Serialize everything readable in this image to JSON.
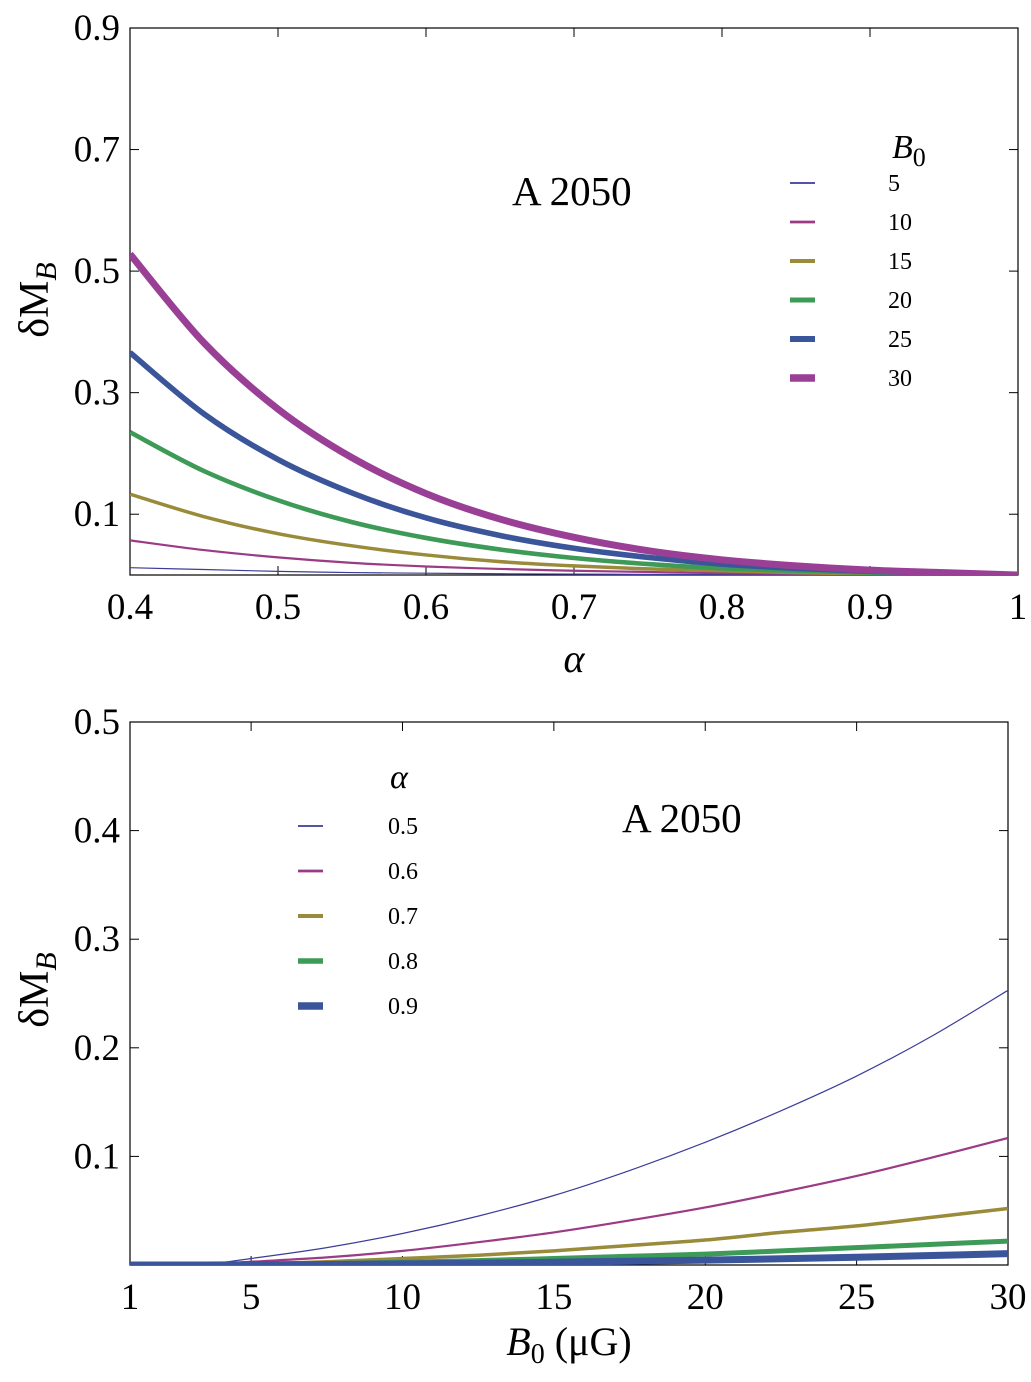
{
  "chart_data": [
    {
      "type": "line",
      "annotation": "A 2050",
      "xlabel": "α",
      "ylabel": "δM",
      "ylabel_sub": "B",
      "xlim": [
        0.4,
        1.0
      ],
      "ylim": [
        0.0,
        0.9
      ],
      "x_ticks": [
        0.4,
        0.5,
        0.6,
        0.7,
        0.8,
        0.9,
        1.0
      ],
      "x_tick_labels": [
        "0.4",
        "0.5",
        "0.6",
        "0.7",
        "0.8",
        "0.9",
        "1"
      ],
      "y_ticks": [
        0.1,
        0.3,
        0.5,
        0.7,
        0.9
      ],
      "y_tick_labels": [
        "0.1",
        "0.3",
        "0.5",
        "0.7",
        "0.9"
      ],
      "legend_title": "B",
      "legend_title_sub": "0",
      "legend_position": "top-right",
      "grid": false,
      "x": [
        0.4,
        0.45,
        0.5,
        0.55,
        0.6,
        0.65,
        0.7,
        0.75,
        0.8,
        0.85,
        0.9,
        0.95,
        1.0
      ],
      "series": [
        {
          "name": "5",
          "color": "#3c3c99",
          "values": [
            0.012,
            0.009,
            0.006,
            0.004,
            0.003,
            0.002,
            0.0015,
            0.001,
            0.0007,
            0.0004,
            0.0002,
            0.0001,
            0.0
          ]
        },
        {
          "name": "10",
          "color": "#9b3a85",
          "values": [
            0.057,
            0.041,
            0.029,
            0.02,
            0.014,
            0.01,
            0.007,
            0.005,
            0.003,
            0.002,
            0.001,
            0.0005,
            0.0
          ]
        },
        {
          "name": "15",
          "color": "#9a8b3b",
          "values": [
            0.133,
            0.096,
            0.068,
            0.048,
            0.033,
            0.022,
            0.015,
            0.01,
            0.007,
            0.004,
            0.002,
            0.001,
            0.0
          ]
        },
        {
          "name": "20",
          "color": "#3d9a57",
          "values": [
            0.235,
            0.171,
            0.123,
            0.087,
            0.061,
            0.042,
            0.028,
            0.018,
            0.011,
            0.007,
            0.004,
            0.002,
            0.0
          ]
        },
        {
          "name": "25",
          "color": "#3a5599",
          "values": [
            0.366,
            0.265,
            0.19,
            0.135,
            0.094,
            0.065,
            0.044,
            0.029,
            0.018,
            0.011,
            0.006,
            0.003,
            0.0
          ]
        },
        {
          "name": "30",
          "color": "#9a3f96",
          "values": [
            0.528,
            0.382,
            0.273,
            0.193,
            0.134,
            0.092,
            0.062,
            0.04,
            0.025,
            0.015,
            0.008,
            0.004,
            0.0
          ]
        }
      ]
    },
    {
      "type": "line",
      "annotation": "A 2050",
      "xlabel": "B",
      "xlabel_sub": "0",
      "xlabel_unit": " (μG)",
      "ylabel": "δM",
      "ylabel_sub": "B",
      "xlim": [
        1,
        30
      ],
      "ylim": [
        0.0,
        0.5
      ],
      "x_ticks": [
        1,
        5,
        10,
        15,
        20,
        25,
        30
      ],
      "x_tick_labels": [
        "1",
        "5",
        "10",
        "15",
        "20",
        "25",
        "30"
      ],
      "y_ticks": [
        0.1,
        0.2,
        0.3,
        0.4,
        0.5
      ],
      "y_tick_labels": [
        "0.1",
        "0.2",
        "0.3",
        "0.4",
        "0.5"
      ],
      "legend_title": "α",
      "legend_position": "top-left",
      "grid": false,
      "x": [
        1,
        3.5,
        5,
        7.5,
        10,
        12.5,
        15,
        17.5,
        20,
        22.5,
        25,
        27.5,
        30
      ],
      "series": [
        {
          "name": "0.5",
          "color": "#3c3c99",
          "values": [
            0.0,
            0.001,
            0.006,
            0.016,
            0.029,
            0.045,
            0.064,
            0.087,
            0.113,
            0.142,
            0.174,
            0.211,
            0.253
          ]
        },
        {
          "name": "0.6",
          "color": "#9b3a85",
          "values": [
            0.0,
            0.0005,
            0.003,
            0.007,
            0.013,
            0.021,
            0.03,
            0.041,
            0.053,
            0.067,
            0.082,
            0.099,
            0.117
          ]
        },
        {
          "name": "0.7",
          "color": "#9a8b3b",
          "values": [
            0.0,
            0.0002,
            0.001,
            0.003,
            0.006,
            0.009,
            0.013,
            0.018,
            0.023,
            0.03,
            0.036,
            0.044,
            0.052
          ]
        },
        {
          "name": "0.8",
          "color": "#3d9a57",
          "values": [
            0.0,
            0.0001,
            0.0005,
            0.0013,
            0.0025,
            0.004,
            0.006,
            0.008,
            0.01,
            0.013,
            0.016,
            0.019,
            0.022
          ]
        },
        {
          "name": "0.9",
          "color": "#3a5599",
          "values": [
            0.0,
            5e-05,
            0.0002,
            0.0005,
            0.001,
            0.0016,
            0.0025,
            0.0035,
            0.0045,
            0.0057,
            0.0071,
            0.0087,
            0.0105
          ]
        }
      ]
    }
  ]
}
